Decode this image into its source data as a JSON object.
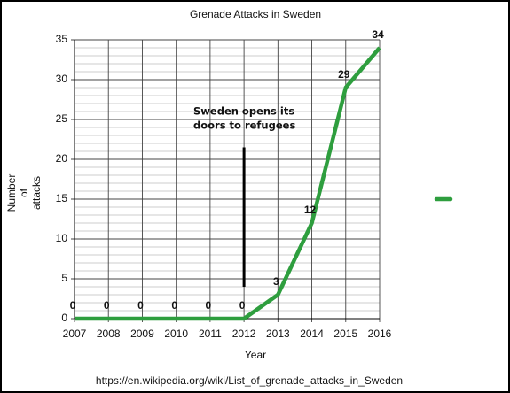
{
  "chart_data": {
    "type": "line",
    "title": "Grenade Attacks in Sweden",
    "xlabel": "Year",
    "ylabel": [
      "Number",
      "of",
      "attacks"
    ],
    "x": [
      2007,
      2008,
      2009,
      2010,
      2011,
      2012,
      2013,
      2014,
      2015,
      2016
    ],
    "series": [
      {
        "color": "#2e9e3e",
        "values": [
          0,
          0,
          0,
          0,
          0,
          0,
          3,
          12,
          29,
          34
        ]
      }
    ],
    "xlim": [
      2007,
      2016
    ],
    "xticks": [
      2007,
      2008,
      2009,
      2010,
      2011,
      2012,
      2013,
      2014,
      2015,
      2016
    ],
    "ylim": [
      0,
      35
    ],
    "yticks": [
      0,
      5,
      10,
      15,
      20,
      25,
      30,
      35
    ],
    "grid": true,
    "minor_grid": true,
    "annotation": {
      "text": [
        "Sweden opens its",
        "doors to refugees"
      ],
      "x": 2012,
      "y_from": 4,
      "y_to": 21.5
    },
    "source": "https://en.wikipedia.org/wiki/List_of_grenade_attacks_in_Sweden"
  }
}
